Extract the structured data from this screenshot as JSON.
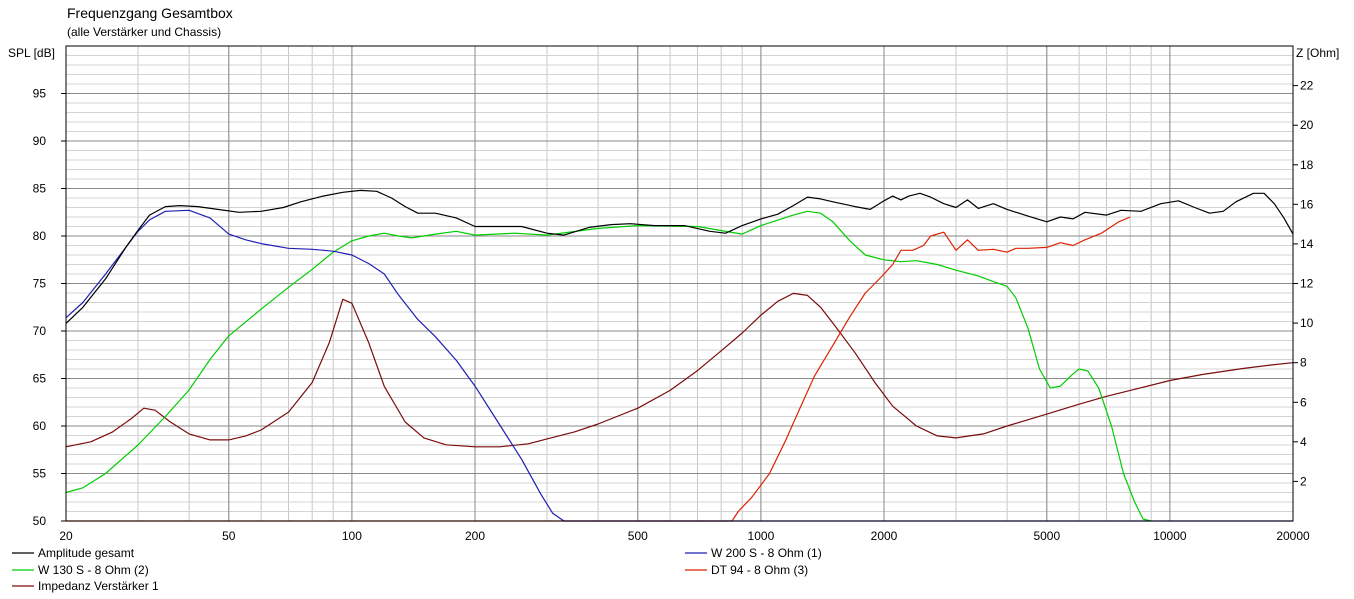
{
  "title": "Frequenzgang Gesamtbox",
  "subtitle": "(alle Verstärker und Chassis)",
  "chart_data": {
    "type": "line",
    "xscale": "log",
    "xlim": [
      20,
      20000
    ],
    "x_ticks": [
      20,
      50,
      100,
      200,
      500,
      1000,
      2000,
      5000,
      10000,
      20000
    ],
    "x_tick_labels": [
      "20",
      "50",
      "100",
      "200",
      "500",
      "1000",
      "2000",
      "5000",
      "10000",
      "20000"
    ],
    "ylabel": "SPL [dB]",
    "ylim": [
      50,
      100
    ],
    "y_ticks": [
      50,
      55,
      60,
      65,
      70,
      75,
      80,
      85,
      90,
      95
    ],
    "y_tick_labels": [
      "50",
      "55",
      "60",
      "65",
      "70",
      "75",
      "80",
      "85",
      "90",
      "95"
    ],
    "y2label": "Z [Ohm]",
    "y2lim": [
      0,
      24
    ],
    "y2_ticks": [
      2,
      4,
      6,
      8,
      10,
      12,
      14,
      16,
      18,
      20,
      22
    ],
    "y2_tick_labels": [
      "2",
      "4",
      "6",
      "8",
      "10",
      "12",
      "14",
      "16",
      "18",
      "20",
      "22"
    ],
    "grid": true,
    "series": [
      {
        "name": "Amplitude gesamt",
        "color": "#000000",
        "axis": "left",
        "points": [
          [
            20,
            70.8
          ],
          [
            22,
            72.5
          ],
          [
            25,
            75.5
          ],
          [
            28,
            78.8
          ],
          [
            30,
            80.6
          ],
          [
            32,
            82.2
          ],
          [
            35,
            83.1
          ],
          [
            38,
            83.2
          ],
          [
            42,
            83.1
          ],
          [
            47,
            82.8
          ],
          [
            53,
            82.5
          ],
          [
            60,
            82.6
          ],
          [
            68,
            83.0
          ],
          [
            75,
            83.6
          ],
          [
            85,
            84.2
          ],
          [
            95,
            84.6
          ],
          [
            105,
            84.8
          ],
          [
            115,
            84.7
          ],
          [
            125,
            84.0
          ],
          [
            135,
            83.1
          ],
          [
            145,
            82.4
          ],
          [
            160,
            82.4
          ],
          [
            180,
            81.9
          ],
          [
            200,
            81.0
          ],
          [
            230,
            81.0
          ],
          [
            260,
            81.0
          ],
          [
            300,
            80.3
          ],
          [
            330,
            80.1
          ],
          [
            380,
            80.9
          ],
          [
            430,
            81.2
          ],
          [
            480,
            81.3
          ],
          [
            550,
            81.1
          ],
          [
            650,
            81.1
          ],
          [
            750,
            80.5
          ],
          [
            820,
            80.3
          ],
          [
            900,
            81.1
          ],
          [
            1000,
            81.8
          ],
          [
            1100,
            82.3
          ],
          [
            1200,
            83.2
          ],
          [
            1300,
            84.1
          ],
          [
            1400,
            83.9
          ],
          [
            1500,
            83.6
          ],
          [
            1700,
            83.1
          ],
          [
            1850,
            82.8
          ],
          [
            2000,
            83.7
          ],
          [
            2100,
            84.2
          ],
          [
            2200,
            83.8
          ],
          [
            2300,
            84.2
          ],
          [
            2450,
            84.5
          ],
          [
            2600,
            84.1
          ],
          [
            2800,
            83.4
          ],
          [
            3000,
            83.0
          ],
          [
            3200,
            83.8
          ],
          [
            3400,
            82.9
          ],
          [
            3700,
            83.4
          ],
          [
            4000,
            82.8
          ],
          [
            4500,
            82.1
          ],
          [
            5000,
            81.5
          ],
          [
            5400,
            82.0
          ],
          [
            5800,
            81.8
          ],
          [
            6200,
            82.5
          ],
          [
            7000,
            82.2
          ],
          [
            7600,
            82.7
          ],
          [
            8500,
            82.6
          ],
          [
            9500,
            83.4
          ],
          [
            10500,
            83.7
          ],
          [
            11500,
            83.0
          ],
          [
            12500,
            82.4
          ],
          [
            13500,
            82.6
          ],
          [
            14500,
            83.6
          ],
          [
            16000,
            84.5
          ],
          [
            17000,
            84.5
          ],
          [
            18000,
            83.4
          ],
          [
            19000,
            81.9
          ],
          [
            20000,
            80.2
          ]
        ]
      },
      {
        "name": "W 200 S - 8 Ohm (1)",
        "color": "#1f1fb4",
        "axis": "left",
        "points": [
          [
            20,
            71.4
          ],
          [
            22,
            73.0
          ],
          [
            25,
            76.0
          ],
          [
            28,
            78.8
          ],
          [
            30,
            80.5
          ],
          [
            32,
            81.7
          ],
          [
            35,
            82.6
          ],
          [
            40,
            82.7
          ],
          [
            45,
            81.9
          ],
          [
            50,
            80.2
          ],
          [
            55,
            79.6
          ],
          [
            60,
            79.2
          ],
          [
            70,
            78.7
          ],
          [
            80,
            78.6
          ],
          [
            90,
            78.4
          ],
          [
            100,
            78.0
          ],
          [
            110,
            77.1
          ],
          [
            120,
            76.0
          ],
          [
            130,
            73.8
          ],
          [
            145,
            71.2
          ],
          [
            160,
            69.4
          ],
          [
            180,
            66.9
          ],
          [
            200,
            64.2
          ],
          [
            230,
            60.1
          ],
          [
            260,
            56.5
          ],
          [
            290,
            52.8
          ],
          [
            310,
            50.8
          ],
          [
            330,
            50.0
          ],
          [
            2000,
            50.0
          ],
          [
            20000,
            50.0
          ]
        ]
      },
      {
        "name": "W 130 S - 8 Ohm (2)",
        "color": "#00cc00",
        "axis": "left",
        "points": [
          [
            20,
            53.0
          ],
          [
            22,
            53.5
          ],
          [
            25,
            55.0
          ],
          [
            30,
            58.0
          ],
          [
            35,
            61.0
          ],
          [
            40,
            63.8
          ],
          [
            45,
            67.0
          ],
          [
            50,
            69.5
          ],
          [
            60,
            72.3
          ],
          [
            70,
            74.6
          ],
          [
            80,
            76.5
          ],
          [
            90,
            78.3
          ],
          [
            100,
            79.5
          ],
          [
            110,
            80.0
          ],
          [
            120,
            80.3
          ],
          [
            130,
            80.0
          ],
          [
            140,
            79.8
          ],
          [
            160,
            80.2
          ],
          [
            180,
            80.5
          ],
          [
            200,
            80.1
          ],
          [
            250,
            80.3
          ],
          [
            300,
            80.1
          ],
          [
            400,
            80.8
          ],
          [
            500,
            81.1
          ],
          [
            700,
            81.0
          ],
          [
            900,
            80.2
          ],
          [
            1000,
            81.1
          ],
          [
            1200,
            82.2
          ],
          [
            1300,
            82.6
          ],
          [
            1400,
            82.4
          ],
          [
            1500,
            81.5
          ],
          [
            1650,
            79.5
          ],
          [
            1800,
            78.0
          ],
          [
            2000,
            77.5
          ],
          [
            2200,
            77.3
          ],
          [
            2400,
            77.4
          ],
          [
            2700,
            77.0
          ],
          [
            3000,
            76.4
          ],
          [
            3400,
            75.8
          ],
          [
            3700,
            75.2
          ],
          [
            4000,
            74.7
          ],
          [
            4200,
            73.5
          ],
          [
            4500,
            70.3
          ],
          [
            4800,
            66.0
          ],
          [
            5100,
            64.0
          ],
          [
            5400,
            64.2
          ],
          [
            5800,
            65.5
          ],
          [
            6000,
            66.0
          ],
          [
            6300,
            65.8
          ],
          [
            6700,
            64.0
          ],
          [
            7200,
            60.0
          ],
          [
            7700,
            55.0
          ],
          [
            8200,
            52.0
          ],
          [
            8600,
            50.2
          ],
          [
            9000,
            50.0
          ]
        ]
      },
      {
        "name": "DT 94 - 8 Ohm (3)",
        "color": "#dd2200",
        "axis": "left",
        "points": [
          [
            20,
            50.0
          ],
          [
            850,
            50.0
          ],
          [
            880,
            51.0
          ],
          [
            950,
            52.5
          ],
          [
            1050,
            55.0
          ],
          [
            1150,
            58.5
          ],
          [
            1250,
            62.0
          ],
          [
            1350,
            65.2
          ],
          [
            1500,
            68.5
          ],
          [
            1650,
            71.5
          ],
          [
            1800,
            74.0
          ],
          [
            1900,
            75.0
          ],
          [
            2000,
            76.0
          ],
          [
            2100,
            77.0
          ],
          [
            2200,
            78.5
          ],
          [
            2350,
            78.5
          ],
          [
            2500,
            79.0
          ],
          [
            2600,
            80.0
          ],
          [
            2800,
            80.4
          ],
          [
            3000,
            78.5
          ],
          [
            3200,
            79.6
          ],
          [
            3400,
            78.5
          ],
          [
            3700,
            78.6
          ],
          [
            4000,
            78.3
          ],
          [
            4200,
            78.7
          ],
          [
            4500,
            78.7
          ],
          [
            5000,
            78.8
          ],
          [
            5400,
            79.3
          ],
          [
            5800,
            79.0
          ],
          [
            6200,
            79.6
          ],
          [
            6800,
            80.3
          ],
          [
            7500,
            81.5
          ],
          [
            8000,
            82.0
          ]
        ]
      },
      {
        "name": "Impedanz Verstärker 1",
        "color": "#7a0c0c",
        "axis": "right",
        "points": [
          [
            20,
            3.75
          ],
          [
            23,
            4.0
          ],
          [
            26,
            4.5
          ],
          [
            29,
            5.2
          ],
          [
            31,
            5.7
          ],
          [
            33,
            5.6
          ],
          [
            36,
            5.0
          ],
          [
            40,
            4.4
          ],
          [
            45,
            4.1
          ],
          [
            50,
            4.1
          ],
          [
            55,
            4.3
          ],
          [
            60,
            4.6
          ],
          [
            70,
            5.5
          ],
          [
            80,
            7.0
          ],
          [
            88,
            9.0
          ],
          [
            95,
            11.2
          ],
          [
            100,
            11.0
          ],
          [
            110,
            9.0
          ],
          [
            120,
            6.8
          ],
          [
            135,
            5.0
          ],
          [
            150,
            4.2
          ],
          [
            170,
            3.85
          ],
          [
            200,
            3.75
          ],
          [
            230,
            3.75
          ],
          [
            270,
            3.9
          ],
          [
            300,
            4.15
          ],
          [
            350,
            4.5
          ],
          [
            400,
            4.9
          ],
          [
            500,
            5.7
          ],
          [
            600,
            6.6
          ],
          [
            700,
            7.6
          ],
          [
            800,
            8.6
          ],
          [
            900,
            9.5
          ],
          [
            1000,
            10.4
          ],
          [
            1100,
            11.1
          ],
          [
            1200,
            11.5
          ],
          [
            1300,
            11.4
          ],
          [
            1400,
            10.8
          ],
          [
            1500,
            10.0
          ],
          [
            1700,
            8.5
          ],
          [
            1900,
            7.0
          ],
          [
            2100,
            5.8
          ],
          [
            2400,
            4.8
          ],
          [
            2700,
            4.3
          ],
          [
            3000,
            4.2
          ],
          [
            3500,
            4.4
          ],
          [
            4000,
            4.8
          ],
          [
            5000,
            5.4
          ],
          [
            6000,
            5.9
          ],
          [
            7000,
            6.3
          ],
          [
            8000,
            6.6
          ],
          [
            10000,
            7.1
          ],
          [
            12000,
            7.4
          ],
          [
            15000,
            7.7
          ],
          [
            18000,
            7.9
          ],
          [
            20000,
            8.0
          ]
        ]
      }
    ]
  }
}
